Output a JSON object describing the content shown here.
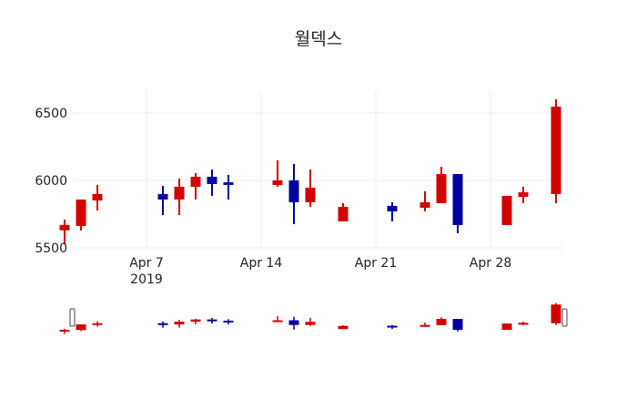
{
  "title": "월덱스",
  "colors": {
    "increasing": "#d40000",
    "decreasing": "#0000a0",
    "grid": "#eeeeee",
    "text": "#222222"
  },
  "chart_data": {
    "type": "candlestick",
    "title": "월덱스",
    "xlabel": "",
    "ylabel": "",
    "ylim": [
      5480,
      6680
    ],
    "y_ticks": [
      5500,
      6000,
      6500
    ],
    "x_ticks": [
      {
        "label": "Apr 7",
        "sublabel": "2019",
        "day": 7
      },
      {
        "label": "Apr 14",
        "sublabel": "",
        "day": 14
      },
      {
        "label": "Apr 21",
        "sublabel": "",
        "day": 21
      },
      {
        "label": "Apr 28",
        "sublabel": "",
        "day": 28
      }
    ],
    "grid": true,
    "range_slider": true,
    "increasing_color": "#d40000",
    "decreasing_color": "#0000a0",
    "candles": [
      {
        "date": "2019-04-02",
        "day": 2,
        "open": 5630,
        "high": 5710,
        "low": 5527,
        "close": 5670
      },
      {
        "date": "2019-04-03",
        "day": 3,
        "open": 5662,
        "high": 5858,
        "low": 5628,
        "close": 5858
      },
      {
        "date": "2019-04-04",
        "day": 4,
        "open": 5851,
        "high": 5966,
        "low": 5777,
        "close": 5899
      },
      {
        "date": "2019-04-08",
        "day": 8,
        "open": 5899,
        "high": 5959,
        "low": 5743,
        "close": 5858
      },
      {
        "date": "2019-04-09",
        "day": 9,
        "open": 5858,
        "high": 6014,
        "low": 5743,
        "close": 5953
      },
      {
        "date": "2019-04-10",
        "day": 10,
        "open": 5953,
        "high": 6054,
        "low": 5858,
        "close": 6027
      },
      {
        "date": "2019-04-11",
        "day": 11,
        "open": 6027,
        "high": 6081,
        "low": 5885,
        "close": 5973
      },
      {
        "date": "2019-04-12",
        "day": 12,
        "open": 5986,
        "high": 6041,
        "low": 5858,
        "close": 5966
      },
      {
        "date": "2019-04-15",
        "day": 15,
        "open": 5966,
        "high": 6149,
        "low": 5953,
        "close": 6000
      },
      {
        "date": "2019-04-16",
        "day": 16,
        "open": 6000,
        "high": 6122,
        "low": 5676,
        "close": 5838
      },
      {
        "date": "2019-04-17",
        "day": 17,
        "open": 5838,
        "high": 6081,
        "low": 5804,
        "close": 5946
      },
      {
        "date": "2019-04-19",
        "day": 19,
        "open": 5696,
        "high": 5831,
        "low": 5696,
        "close": 5804
      },
      {
        "date": "2019-04-22",
        "day": 22,
        "open": 5811,
        "high": 5838,
        "low": 5696,
        "close": 5770
      },
      {
        "date": "2019-04-24",
        "day": 24,
        "open": 5797,
        "high": 5919,
        "low": 5770,
        "close": 5838
      },
      {
        "date": "2019-04-25",
        "day": 25,
        "open": 5831,
        "high": 6101,
        "low": 5831,
        "close": 6047
      },
      {
        "date": "2019-04-26",
        "day": 26,
        "open": 6047,
        "high": 6047,
        "low": 5608,
        "close": 5669
      },
      {
        "date": "2019-04-29",
        "day": 29,
        "open": 5669,
        "high": 5885,
        "low": 5669,
        "close": 5885
      },
      {
        "date": "2019-04-30",
        "day": 30,
        "open": 5878,
        "high": 5953,
        "low": 5831,
        "close": 5912
      },
      {
        "date": "2019-05-02",
        "day": 32,
        "open": 5899,
        "high": 6601,
        "low": 5831,
        "close": 6547
      }
    ]
  }
}
